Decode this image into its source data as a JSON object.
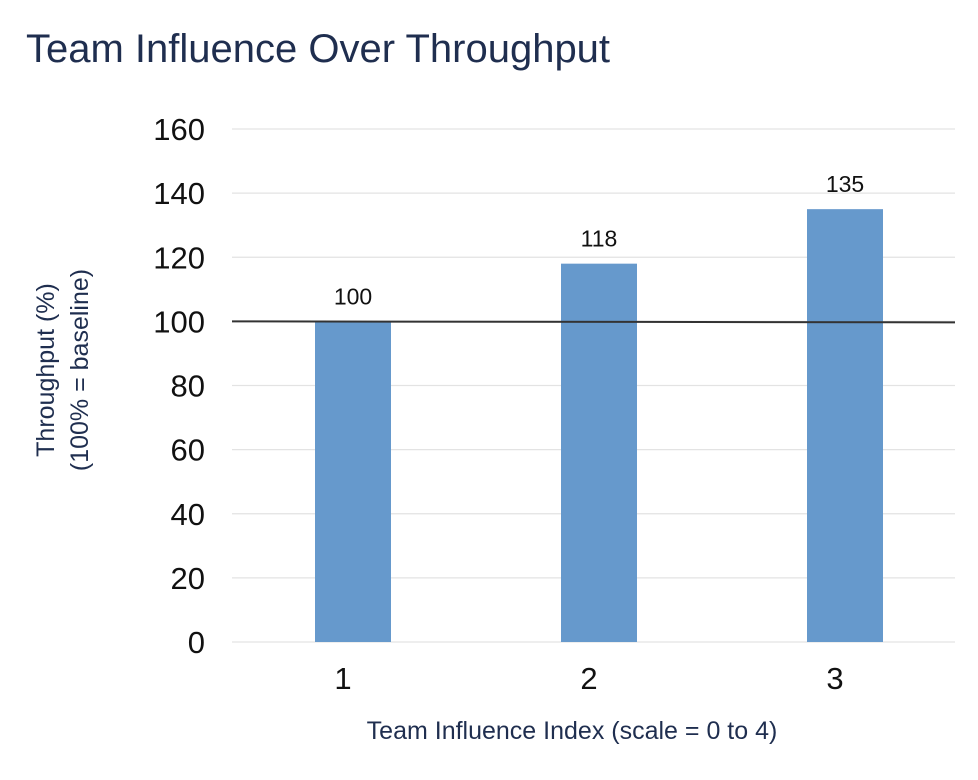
{
  "chart_data": {
    "type": "bar",
    "title": "Team Influence Over Throughput",
    "xlabel": "Team Influence Index (scale = 0 to 4)",
    "ylabel_line1": "Throughput (%)",
    "ylabel_line2": "(100% = baseline)",
    "categories": [
      "1",
      "2",
      "3"
    ],
    "values": [
      100,
      118,
      135
    ],
    "data_labels": [
      "100",
      "118",
      "135"
    ],
    "ylim": [
      0,
      160
    ],
    "yticks": [
      0,
      20,
      40,
      60,
      80,
      100,
      120,
      140,
      160
    ],
    "ytick_labels": [
      "0",
      "20",
      "40",
      "60",
      "80",
      "100",
      "120",
      "140",
      "160"
    ],
    "reference_line": 100,
    "grid": true,
    "colors": {
      "bar": "#6699cc",
      "title": "#1f2e4f",
      "grid": "#e3e3e3",
      "reference_line": "#333333"
    }
  }
}
